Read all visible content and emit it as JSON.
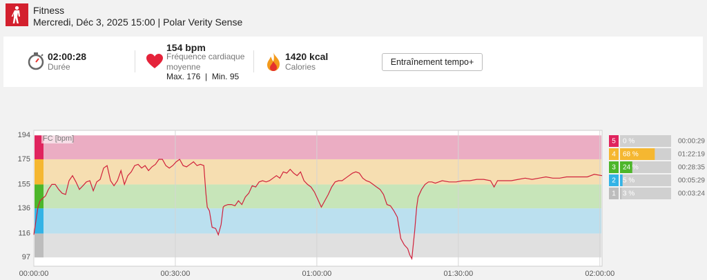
{
  "header": {
    "title": "Fitness",
    "subtitle": "Mercredi, Déc 3, 2025 15:00 | Polar Verity Sense"
  },
  "summary": {
    "duration": {
      "value": "02:00:28",
      "label": "Durée"
    },
    "heart_rate": {
      "value": "154 bpm",
      "label": "Fréquence cardiaque moyenne",
      "range": "Max. 176  |  Min. 95"
    },
    "calories": {
      "value": "1420 kcal",
      "label": "Calories"
    },
    "button": "Entraînement tempo+"
  },
  "chart_data": {
    "type": "line",
    "y_label": "FC [bpm]",
    "color": "#d0203a",
    "grid": true,
    "xlim": [
      0,
      7228
    ],
    "ylim": [
      90,
      198
    ],
    "xticks": [
      {
        "value": 0,
        "label": "00:00:00"
      },
      {
        "value": 1800,
        "label": "00:30:00"
      },
      {
        "value": 3600,
        "label": "01:00:00"
      },
      {
        "value": 5400,
        "label": "01:30:00"
      },
      {
        "value": 7200,
        "label": "02:00:00"
      }
    ],
    "yticks": [
      97,
      116,
      136,
      155,
      175,
      194
    ],
    "x": [
      0,
      26,
      53,
      79,
      114,
      149,
      185,
      229,
      272,
      316,
      360,
      404,
      448,
      492,
      536,
      580,
      624,
      668,
      712,
      756,
      800,
      844,
      888,
      932,
      976,
      1020,
      1064,
      1108,
      1152,
      1195,
      1239,
      1283,
      1327,
      1371,
      1415,
      1459,
      1503,
      1547,
      1591,
      1635,
      1679,
      1723,
      1767,
      1811,
      1855,
      1899,
      1943,
      1987,
      2031,
      2075,
      2119,
      2162,
      2189,
      2206,
      2233,
      2268,
      2312,
      2347,
      2382,
      2409,
      2426,
      2470,
      2514,
      2558,
      2602,
      2646,
      2690,
      2734,
      2778,
      2822,
      2866,
      2910,
      2954,
      2998,
      3042,
      3086,
      3129,
      3173,
      3217,
      3261,
      3305,
      3349,
      3393,
      3437,
      3481,
      3525,
      3569,
      3613,
      3657,
      3701,
      3745,
      3789,
      3833,
      3877,
      3921,
      3965,
      4009,
      4053,
      4096,
      4140,
      4184,
      4228,
      4272,
      4316,
      4360,
      4404,
      4448,
      4492,
      4536,
      4580,
      4624,
      4668,
      4712,
      4756,
      4782,
      4808,
      4844,
      4870,
      4888,
      4932,
      4976,
      5020,
      5063,
      5107,
      5151,
      5195,
      5283,
      5371,
      5459,
      5547,
      5635,
      5722,
      5810,
      5854,
      5898,
      5986,
      6074,
      6162,
      6250,
      6338,
      6426,
      6514,
      6601,
      6689,
      6777,
      6865,
      6953,
      7041,
      7129,
      7228
    ],
    "values": [
      115,
      126,
      137,
      142,
      144,
      146,
      151,
      155,
      155,
      151,
      148,
      147,
      158,
      162,
      157,
      151,
      154,
      157,
      158,
      150,
      157,
      159,
      168,
      170,
      158,
      154,
      158,
      166,
      155,
      162,
      165,
      170,
      171,
      168,
      170,
      166,
      169,
      171,
      175,
      175,
      170,
      168,
      170,
      173,
      175,
      170,
      169,
      171,
      173,
      170,
      171,
      170,
      148,
      137,
      134,
      121,
      120,
      115,
      123,
      137,
      138,
      139,
      139,
      138,
      142,
      139,
      145,
      148,
      154,
      153,
      157,
      158,
      157,
      158,
      160,
      162,
      160,
      165,
      164,
      167,
      164,
      162,
      165,
      158,
      155,
      153,
      149,
      143,
      137,
      142,
      147,
      153,
      157,
      158,
      158,
      160,
      162,
      164,
      165,
      164,
      160,
      158,
      157,
      155,
      153,
      151,
      147,
      139,
      138,
      134,
      129,
      112,
      107,
      104,
      99,
      96,
      118,
      137,
      145,
      151,
      155,
      157,
      157,
      156,
      157,
      158,
      157,
      157,
      158,
      158,
      159,
      159,
      158,
      153,
      158,
      158,
      158,
      159,
      160,
      159,
      160,
      161,
      160,
      160,
      161,
      161,
      161,
      161,
      163,
      162
    ],
    "zones": [
      {
        "name": "5",
        "color": "#e0245e",
        "band_color": "#ebadc3",
        "percent": 0,
        "percent_label": "0 %",
        "time": "00:00:29"
      },
      {
        "name": "4",
        "color": "#f5b731",
        "band_color": "#f6deb1",
        "percent": 68,
        "percent_label": "68 %",
        "time": "01:22:19"
      },
      {
        "name": "3",
        "color": "#4db62a",
        "band_color": "#c7e5b9",
        "percent": 24,
        "percent_label": "24 %",
        "time": "00:28:35"
      },
      {
        "name": "2",
        "color": "#33b3e6",
        "band_color": "#bbe0ef",
        "percent": 5,
        "percent_label": "5 %",
        "time": "00:05:29"
      },
      {
        "name": "1",
        "color": "#bdbdbd",
        "band_color": "#e0e0e0",
        "percent": 3,
        "percent_label": "3 %",
        "time": "00:03:24"
      }
    ]
  }
}
